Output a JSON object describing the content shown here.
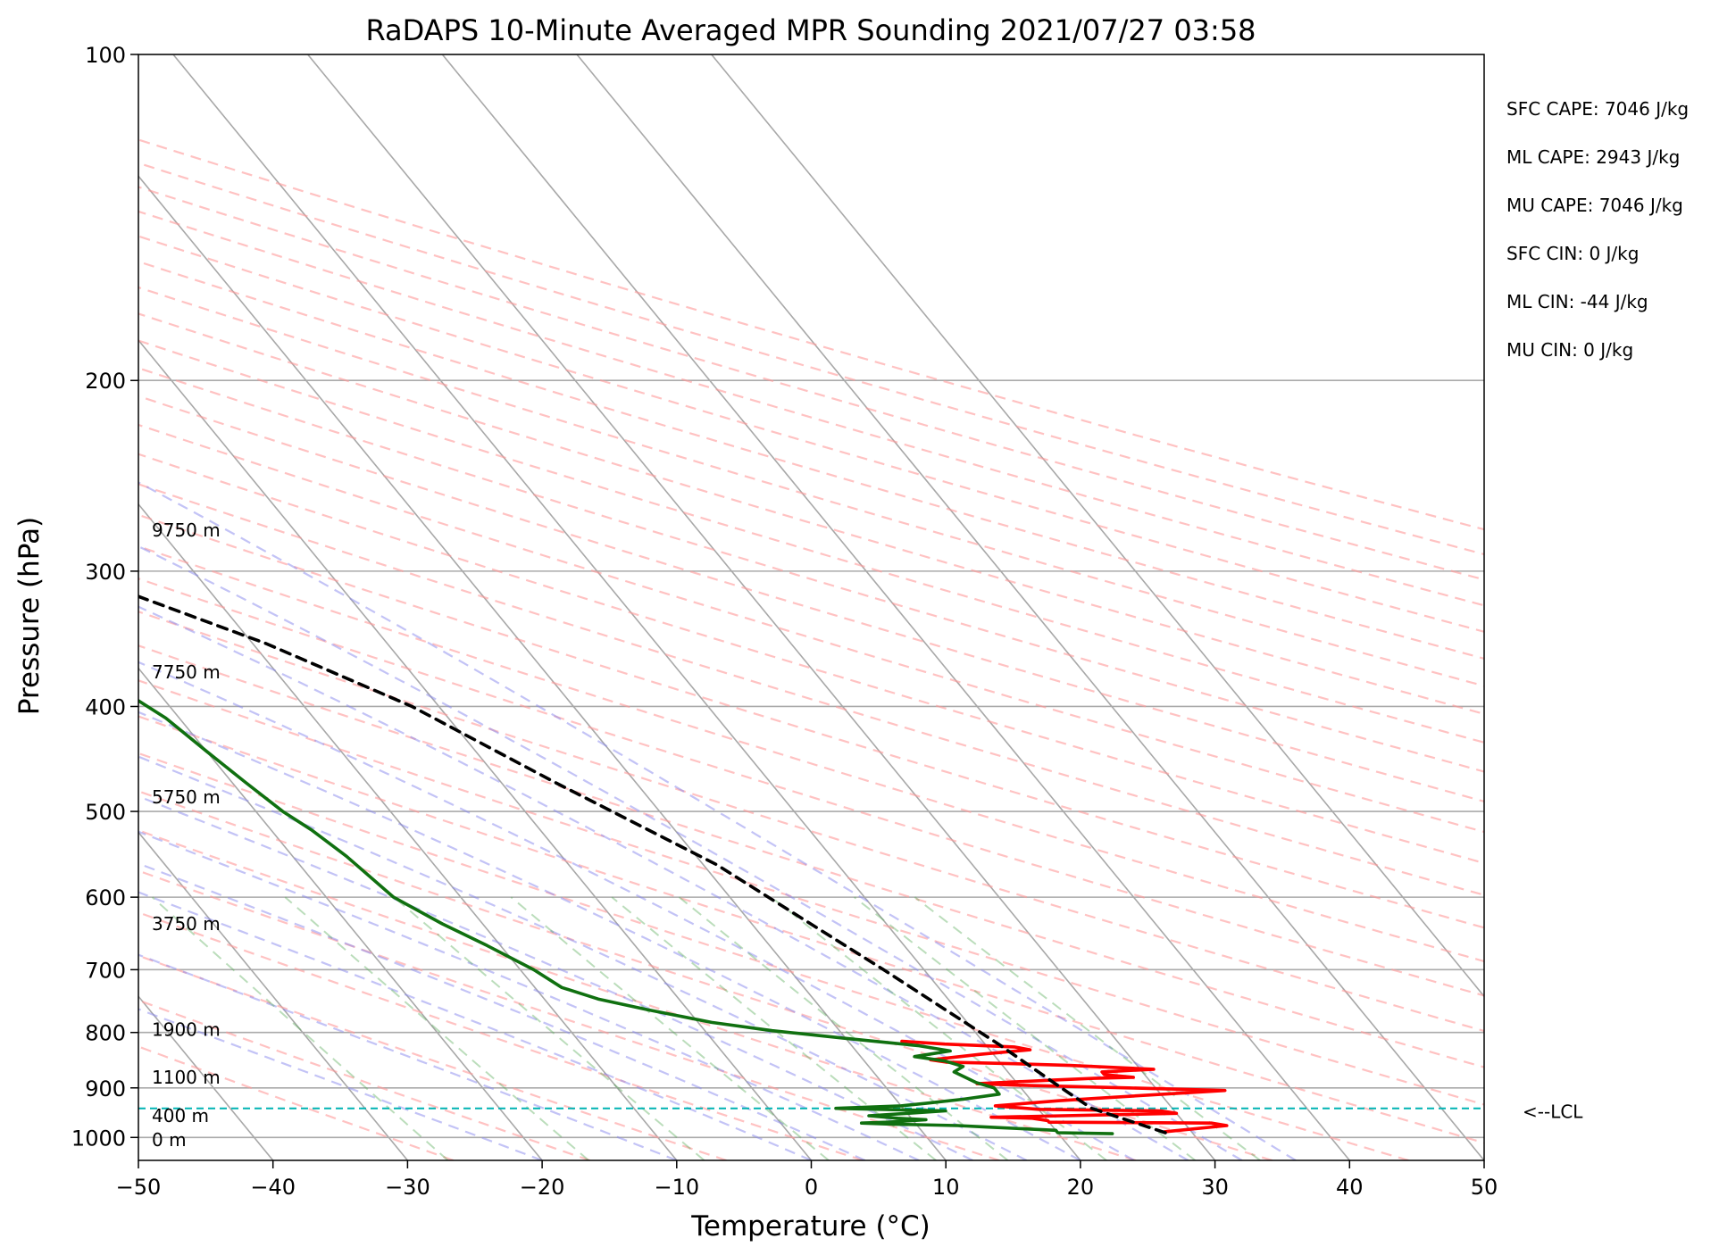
{
  "chart_data": {
    "type": "line",
    "title": "RaDAPS 10-Minute Averaged MPR Sounding 2021/07/27 03:58",
    "xlabel": "Temperature (°C)",
    "ylabel": "Pressure (hPa)",
    "xlim": [
      -50,
      50
    ],
    "ylim": [
      1050,
      100
    ],
    "y_scale": "log",
    "x_ticks": [
      -50,
      -40,
      -30,
      -20,
      -10,
      0,
      10,
      20,
      30,
      40,
      50
    ],
    "x_tick_labels": [
      "−50",
      "−40",
      "−30",
      "−20",
      "−10",
      "0",
      "10",
      "20",
      "30",
      "40",
      "50"
    ],
    "y_ticks": [
      100,
      200,
      300,
      400,
      500,
      600,
      700,
      800,
      900,
      1000
    ],
    "y_tick_labels": [
      "100",
      "200",
      "300",
      "400",
      "500",
      "600",
      "700",
      "800",
      "900",
      "1000"
    ],
    "grid": true,
    "skew_x": true,
    "series": [
      {
        "role": "temperature",
        "color": "#ff0000",
        "points": [
          [
            28,
            988
          ],
          [
            33,
            975
          ],
          [
            32,
            970
          ],
          [
            20,
            968
          ],
          [
            20,
            965
          ],
          [
            19,
            960
          ],
          [
            16,
            958
          ],
          [
            30,
            950
          ],
          [
            29,
            945
          ],
          [
            20,
            942
          ],
          [
            17,
            935
          ],
          [
            22,
            925
          ],
          [
            25,
            920
          ],
          [
            35,
            905
          ],
          [
            28,
            900
          ],
          [
            20,
            895
          ],
          [
            17,
            892
          ],
          [
            23,
            885
          ],
          [
            26,
            882
          ],
          [
            29,
            880
          ],
          [
            27,
            875
          ],
          [
            27,
            870
          ],
          [
            31,
            865
          ],
          [
            25,
            858
          ],
          [
            21,
            855
          ],
          [
            16,
            852
          ],
          [
            15,
            848
          ],
          [
            19,
            838
          ],
          [
            23,
            830
          ],
          [
            22,
            825
          ],
          [
            17,
            820
          ],
          [
            14,
            815
          ]
        ]
      },
      {
        "role": "dewpoint",
        "color": "#107010",
        "points": [
          [
            24,
            992
          ],
          [
            20,
            990
          ],
          [
            20,
            985
          ],
          [
            15,
            978
          ],
          [
            13,
            975
          ],
          [
            8,
            972
          ],
          [
            6,
            970
          ],
          [
            8,
            968
          ],
          [
            11,
            963
          ],
          [
            9,
            960
          ],
          [
            7,
            955
          ],
          [
            10,
            950
          ],
          [
            13,
            945
          ],
          [
            5,
            940
          ],
          [
            10,
            935
          ],
          [
            12,
            930
          ],
          [
            15,
            922
          ],
          [
            18,
            912
          ],
          [
            18,
            900
          ],
          [
            17,
            890
          ],
          [
            16,
            870
          ],
          [
            17,
            860
          ],
          [
            16,
            850
          ],
          [
            14,
            842
          ],
          [
            17,
            832
          ],
          [
            15,
            823
          ],
          [
            10,
            810
          ],
          [
            5,
            797
          ],
          [
            1,
            783
          ],
          [
            -3,
            762
          ],
          [
            -6,
            745
          ],
          [
            -8,
            727
          ],
          [
            -9,
            700
          ],
          [
            -11,
            665
          ],
          [
            -13,
            635
          ],
          [
            -15,
            600
          ],
          [
            -16,
            550
          ],
          [
            -17,
            520
          ],
          [
            -18,
            500
          ],
          [
            -19,
            470
          ],
          [
            -20,
            440
          ],
          [
            -21,
            410
          ],
          [
            -23,
            380
          ],
          [
            -24,
            360
          ],
          [
            -26,
            330
          ],
          [
            -27,
            305
          ],
          [
            -29,
            290
          ],
          [
            -30,
            278
          ],
          [
            -32,
            262
          ]
        ]
      },
      {
        "role": "parcel",
        "color": "#000000",
        "dashed": true,
        "points": [
          [
            28,
            990
          ],
          [
            24,
            940
          ],
          [
            23,
            900
          ],
          [
            21,
            820
          ],
          [
            17,
            700
          ],
          [
            11,
            560
          ],
          [
            4,
            470
          ],
          [
            -2,
            400
          ],
          [
            -9,
            350
          ],
          [
            -17,
            310
          ],
          [
            -24,
            280
          ],
          [
            -30,
            262
          ]
        ]
      }
    ],
    "lcl": {
      "pressure": 940,
      "label": "<--LCL"
    },
    "height_labels": [
      {
        "pressure": 1005,
        "label": "0 m"
      },
      {
        "pressure": 955,
        "label": "400 m"
      },
      {
        "pressure": 880,
        "label": "1100 m"
      },
      {
        "pressure": 795,
        "label": "1900 m"
      },
      {
        "pressure": 635,
        "label": "3750 m"
      },
      {
        "pressure": 485,
        "label": "5750 m"
      },
      {
        "pressure": 372,
        "label": "7750 m"
      },
      {
        "pressure": 275,
        "label": "9750 m"
      }
    ],
    "indices": [
      "SFC CAPE: 7046 J/kg",
      "ML CAPE: 2943 J/kg",
      "MU CAPE: 7046 J/kg",
      "SFC CIN: 0 J/kg",
      "ML CIN: -44 J/kg",
      "MU CIN: 0 J/kg"
    ]
  }
}
